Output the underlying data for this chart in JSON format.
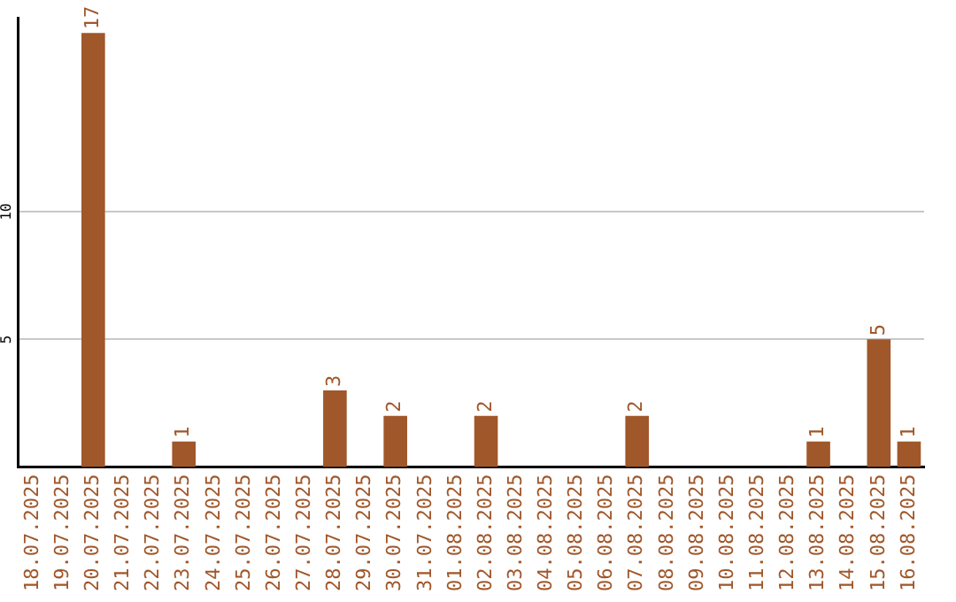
{
  "chart_data": {
    "type": "bar",
    "categories": [
      "18.07.2025",
      "19.07.2025",
      "20.07.2025",
      "21.07.2025",
      "22.07.2025",
      "23.07.2025",
      "24.07.2025",
      "25.07.2025",
      "26.07.2025",
      "27.07.2025",
      "28.07.2025",
      "29.07.2025",
      "30.07.2025",
      "31.07.2025",
      "01.08.2025",
      "02.08.2025",
      "03.08.2025",
      "04.08.2025",
      "05.08.2025",
      "06.08.2025",
      "07.08.2025",
      "08.08.2025",
      "09.08.2025",
      "10.08.2025",
      "11.08.2025",
      "12.08.2025",
      "13.08.2025",
      "14.08.2025",
      "15.08.2025",
      "16.08.2025"
    ],
    "values": [
      0,
      0,
      17,
      0,
      0,
      1,
      0,
      0,
      0,
      0,
      3,
      0,
      2,
      0,
      0,
      2,
      0,
      0,
      0,
      0,
      2,
      0,
      0,
      0,
      0,
      0,
      1,
      0,
      5,
      1
    ],
    "value_labels": [
      null,
      null,
      "17",
      null,
      null,
      "1",
      null,
      null,
      null,
      null,
      "3",
      null,
      "2",
      null,
      null,
      "2",
      null,
      null,
      null,
      null,
      "2",
      null,
      null,
      null,
      null,
      null,
      "1",
      null,
      "5",
      "1"
    ],
    "color": "#a0572a",
    "ylim": [
      0,
      17.6
    ],
    "yticks": [
      5,
      10
    ],
    "grid": "y",
    "legend": false
  }
}
